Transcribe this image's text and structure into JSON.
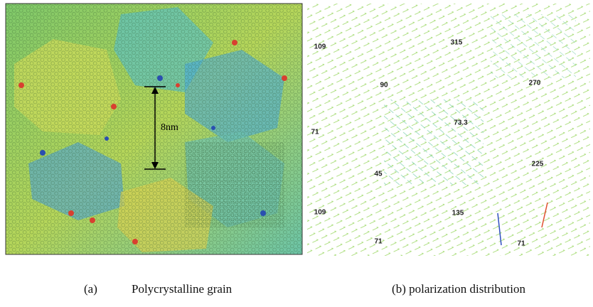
{
  "panel_a": {
    "scale_label": "8nm",
    "caption_letter": "(a)",
    "caption": "Polycrystalline grain"
  },
  "panel_b": {
    "grain_labels": [
      "109",
      "315",
      "90",
      "270",
      "71",
      "73.3",
      "225",
      "45",
      "109",
      "135",
      "71",
      "71"
    ],
    "caption": "(b) polarization distribution"
  }
}
